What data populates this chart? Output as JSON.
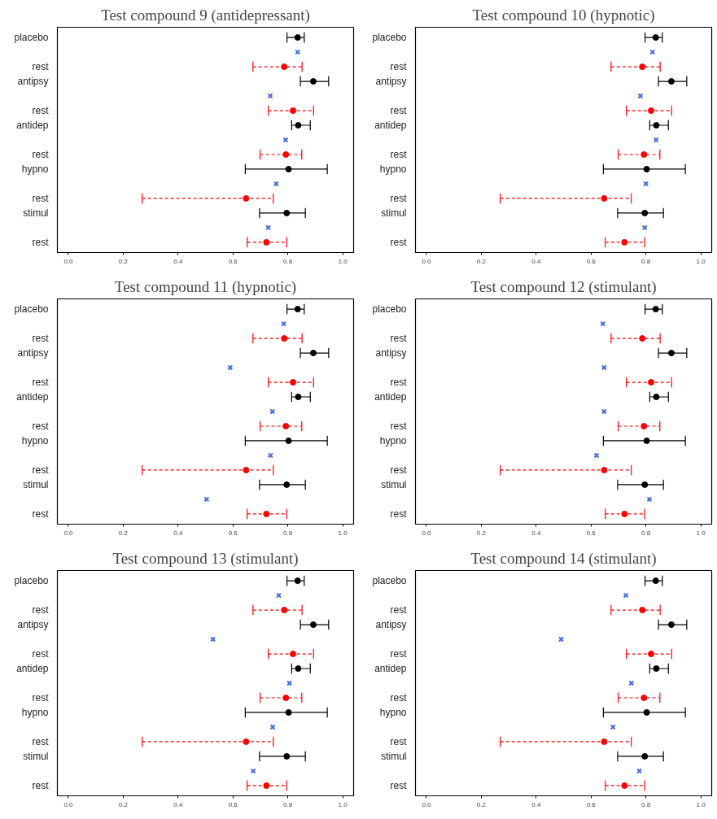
{
  "chart_data": [
    {
      "type": "scatter",
      "orientation": "horizontal",
      "title": "Test compound 9 (antidepressant)",
      "categories": [
        "placebo",
        null,
        "rest",
        "antipsy",
        null,
        "rest",
        "antidep",
        null,
        "rest",
        "hypno",
        null,
        "rest",
        "stimul",
        null,
        "rest"
      ],
      "xlim": [
        -0.04,
        1.04
      ],
      "xticks": [
        {
          "value": 0,
          "label": "0.0"
        },
        {
          "value": 0.2,
          "label": "0.2"
        },
        {
          "value": 0.4,
          "label": "0.4"
        },
        {
          "value": 0.6,
          "label": "0.6"
        },
        {
          "value": 0.8,
          "label": "0.8"
        },
        {
          "value": 1,
          "label": "1.0"
        }
      ],
      "series": [
        {
          "color": "#000000",
          "marker": "circle",
          "line_style": "solid",
          "values": [
            0.836,
            null,
            null,
            0.893,
            null,
            null,
            0.838,
            null,
            null,
            0.803,
            null,
            null,
            0.796,
            null,
            null
          ],
          "errors": [
            [
              0.797,
              0.86
            ],
            null,
            null,
            [
              0.846,
              0.949
            ],
            null,
            null,
            [
              0.814,
              0.882
            ],
            null,
            null,
            [
              0.645,
              0.944
            ],
            null,
            null,
            [
              0.697,
              0.864
            ],
            null,
            null
          ]
        },
        {
          "color": "#ff0000",
          "marker": "circle",
          "line_style": "dashed",
          "values": [
            null,
            null,
            0.787,
            null,
            null,
            0.819,
            null,
            null,
            0.793,
            null,
            null,
            0.648,
            null,
            null,
            0.722
          ],
          "errors": [
            null,
            null,
            [
              0.673,
              0.852
            ],
            null,
            null,
            [
              0.729,
              0.894
            ],
            null,
            null,
            [
              0.699,
              0.851
            ],
            null,
            null,
            [
              0.269,
              0.747
            ],
            null,
            null,
            [
              0.652,
              0.796
            ]
          ]
        },
        {
          "color": "#4169e1",
          "marker": "cross",
          "values": [
            null,
            0.836,
            null,
            null,
            0.736,
            null,
            null,
            0.792,
            null,
            null,
            0.758,
            null,
            null,
            0.729,
            null
          ]
        }
      ]
    },
    {
      "type": "scatter",
      "orientation": "horizontal",
      "title": "Test compound 10 (hypnotic)",
      "categories": [
        "placebo",
        null,
        "rest",
        "antipsy",
        null,
        "rest",
        "antidep",
        null,
        "rest",
        "hypno",
        null,
        "rest",
        "stimul",
        null,
        "rest"
      ],
      "xlim": [
        -0.04,
        1.04
      ],
      "xticks": [
        {
          "value": 0,
          "label": "0.0"
        },
        {
          "value": 0.2,
          "label": "0.2"
        },
        {
          "value": 0.4,
          "label": "0.4"
        },
        {
          "value": 0.6,
          "label": "0.6"
        },
        {
          "value": 0.8,
          "label": "0.8"
        },
        {
          "value": 1,
          "label": "1.0"
        }
      ],
      "series": [
        {
          "color": "#000000",
          "marker": "circle",
          "line_style": "solid",
          "values": [
            0.836,
            null,
            null,
            0.893,
            null,
            null,
            0.838,
            null,
            null,
            0.803,
            null,
            null,
            0.796,
            null,
            null
          ],
          "errors": [
            [
              0.797,
              0.86
            ],
            null,
            null,
            [
              0.846,
              0.949
            ],
            null,
            null,
            [
              0.814,
              0.882
            ],
            null,
            null,
            [
              0.645,
              0.944
            ],
            null,
            null,
            [
              0.697,
              0.864
            ],
            null,
            null
          ]
        },
        {
          "color": "#ff0000",
          "marker": "circle",
          "line_style": "dashed",
          "values": [
            null,
            null,
            0.787,
            null,
            null,
            0.819,
            null,
            null,
            0.793,
            null,
            null,
            0.648,
            null,
            null,
            0.722
          ],
          "errors": [
            null,
            null,
            [
              0.673,
              0.852
            ],
            null,
            null,
            [
              0.729,
              0.894
            ],
            null,
            null,
            [
              0.699,
              0.851
            ],
            null,
            null,
            [
              0.269,
              0.747
            ],
            null,
            null,
            [
              0.652,
              0.796
            ]
          ]
        },
        {
          "color": "#4169e1",
          "marker": "cross",
          "values": [
            null,
            0.824,
            null,
            null,
            0.78,
            null,
            null,
            0.837,
            null,
            null,
            0.8,
            null,
            null,
            0.796,
            null
          ]
        }
      ]
    },
    {
      "type": "scatter",
      "orientation": "horizontal",
      "title": "Test compound 11 (hypnotic)",
      "categories": [
        "placebo",
        null,
        "rest",
        "antipsy",
        null,
        "rest",
        "antidep",
        null,
        "rest",
        "hypno",
        null,
        "rest",
        "stimul",
        null,
        "rest"
      ],
      "xlim": [
        -0.04,
        1.04
      ],
      "xticks": [
        {
          "value": 0,
          "label": "0.0"
        },
        {
          "value": 0.2,
          "label": "0.2"
        },
        {
          "value": 0.4,
          "label": "0.4"
        },
        {
          "value": 0.6,
          "label": "0.6"
        },
        {
          "value": 0.8,
          "label": "0.8"
        },
        {
          "value": 1,
          "label": "1.0"
        }
      ],
      "series": [
        {
          "color": "#000000",
          "marker": "circle",
          "line_style": "solid",
          "values": [
            0.836,
            null,
            null,
            0.893,
            null,
            null,
            0.838,
            null,
            null,
            0.803,
            null,
            null,
            0.796,
            null,
            null
          ],
          "errors": [
            [
              0.797,
              0.86
            ],
            null,
            null,
            [
              0.846,
              0.949
            ],
            null,
            null,
            [
              0.814,
              0.882
            ],
            null,
            null,
            [
              0.645,
              0.944
            ],
            null,
            null,
            [
              0.697,
              0.864
            ],
            null,
            null
          ]
        },
        {
          "color": "#ff0000",
          "marker": "circle",
          "line_style": "dashed",
          "values": [
            null,
            null,
            0.787,
            null,
            null,
            0.819,
            null,
            null,
            0.793,
            null,
            null,
            0.648,
            null,
            null,
            0.722
          ],
          "errors": [
            null,
            null,
            [
              0.673,
              0.852
            ],
            null,
            null,
            [
              0.729,
              0.894
            ],
            null,
            null,
            [
              0.699,
              0.851
            ],
            null,
            null,
            [
              0.269,
              0.747
            ],
            null,
            null,
            [
              0.652,
              0.796
            ]
          ]
        },
        {
          "color": "#4169e1",
          "marker": "cross",
          "values": [
            null,
            0.785,
            null,
            null,
            0.59,
            null,
            null,
            0.744,
            null,
            null,
            0.737,
            null,
            null,
            0.504,
            null
          ]
        }
      ]
    },
    {
      "type": "scatter",
      "orientation": "horizontal",
      "title": "Test compound 12 (stimulant)",
      "categories": [
        "placebo",
        null,
        "rest",
        "antipsy",
        null,
        "rest",
        "antidep",
        null,
        "rest",
        "hypno",
        null,
        "rest",
        "stimul",
        null,
        "rest"
      ],
      "xlim": [
        -0.04,
        1.04
      ],
      "xticks": [
        {
          "value": 0,
          "label": "0.0"
        },
        {
          "value": 0.2,
          "label": "0.2"
        },
        {
          "value": 0.4,
          "label": "0.4"
        },
        {
          "value": 0.6,
          "label": "0.6"
        },
        {
          "value": 0.8,
          "label": "0.8"
        },
        {
          "value": 1,
          "label": "1.0"
        }
      ],
      "series": [
        {
          "color": "#000000",
          "marker": "circle",
          "line_style": "solid",
          "values": [
            0.836,
            null,
            null,
            0.893,
            null,
            null,
            0.838,
            null,
            null,
            0.803,
            null,
            null,
            0.796,
            null,
            null
          ],
          "errors": [
            [
              0.797,
              0.86
            ],
            null,
            null,
            [
              0.846,
              0.949
            ],
            null,
            null,
            [
              0.814,
              0.882
            ],
            null,
            null,
            [
              0.645,
              0.944
            ],
            null,
            null,
            [
              0.697,
              0.864
            ],
            null,
            null
          ]
        },
        {
          "color": "#ff0000",
          "marker": "circle",
          "line_style": "dashed",
          "values": [
            null,
            null,
            0.787,
            null,
            null,
            0.819,
            null,
            null,
            0.793,
            null,
            null,
            0.648,
            null,
            null,
            0.722
          ],
          "errors": [
            null,
            null,
            [
              0.673,
              0.852
            ],
            null,
            null,
            [
              0.729,
              0.894
            ],
            null,
            null,
            [
              0.699,
              0.851
            ],
            null,
            null,
            [
              0.269,
              0.747
            ],
            null,
            null,
            [
              0.652,
              0.796
            ]
          ]
        },
        {
          "color": "#4169e1",
          "marker": "cross",
          "values": [
            null,
            0.643,
            null,
            null,
            0.648,
            null,
            null,
            0.648,
            null,
            null,
            0.62,
            null,
            null,
            0.813,
            null
          ]
        }
      ]
    },
    {
      "type": "scatter",
      "orientation": "horizontal",
      "title": "Test compound 13 (stimulant)",
      "categories": [
        "placebo",
        null,
        "rest",
        "antipsy",
        null,
        "rest",
        "antidep",
        null,
        "rest",
        "hypno",
        null,
        "rest",
        "stimul",
        null,
        "rest"
      ],
      "xlim": [
        -0.04,
        1.04
      ],
      "xticks": [
        {
          "value": 0,
          "label": "0.0"
        },
        {
          "value": 0.2,
          "label": "0.2"
        },
        {
          "value": 0.4,
          "label": "0.4"
        },
        {
          "value": 0.6,
          "label": "0.6"
        },
        {
          "value": 0.8,
          "label": "0.8"
        },
        {
          "value": 1,
          "label": "1.0"
        }
      ],
      "series": [
        {
          "color": "#000000",
          "marker": "circle",
          "line_style": "solid",
          "values": [
            0.836,
            null,
            null,
            0.893,
            null,
            null,
            0.838,
            null,
            null,
            0.803,
            null,
            null,
            0.796,
            null,
            null
          ],
          "errors": [
            [
              0.797,
              0.86
            ],
            null,
            null,
            [
              0.846,
              0.949
            ],
            null,
            null,
            [
              0.814,
              0.882
            ],
            null,
            null,
            [
              0.645,
              0.944
            ],
            null,
            null,
            [
              0.697,
              0.864
            ],
            null,
            null
          ]
        },
        {
          "color": "#ff0000",
          "marker": "circle",
          "line_style": "dashed",
          "values": [
            null,
            null,
            0.787,
            null,
            null,
            0.819,
            null,
            null,
            0.793,
            null,
            null,
            0.648,
            null,
            null,
            0.722
          ],
          "errors": [
            null,
            null,
            [
              0.673,
              0.852
            ],
            null,
            null,
            [
              0.729,
              0.894
            ],
            null,
            null,
            [
              0.699,
              0.851
            ],
            null,
            null,
            [
              0.269,
              0.747
            ],
            null,
            null,
            [
              0.652,
              0.796
            ]
          ]
        },
        {
          "color": "#4169e1",
          "marker": "cross",
          "values": [
            null,
            0.767,
            null,
            null,
            0.527,
            null,
            null,
            0.806,
            null,
            null,
            0.745,
            null,
            null,
            0.674,
            null
          ]
        }
      ]
    },
    {
      "type": "scatter",
      "orientation": "horizontal",
      "title": "Test compound 14 (stimulant)",
      "categories": [
        "placebo",
        null,
        "rest",
        "antipsy",
        null,
        "rest",
        "antidep",
        null,
        "rest",
        "hypno",
        null,
        "rest",
        "stimul",
        null,
        "rest"
      ],
      "xlim": [
        -0.04,
        1.04
      ],
      "xticks": [
        {
          "value": 0,
          "label": "0.0"
        },
        {
          "value": 0.2,
          "label": "0.2"
        },
        {
          "value": 0.4,
          "label": "0.4"
        },
        {
          "value": 0.6,
          "label": "0.6"
        },
        {
          "value": 0.8,
          "label": "0.8"
        },
        {
          "value": 1,
          "label": "1.0"
        }
      ],
      "series": [
        {
          "color": "#000000",
          "marker": "circle",
          "line_style": "solid",
          "values": [
            0.836,
            null,
            null,
            0.893,
            null,
            null,
            0.838,
            null,
            null,
            0.803,
            null,
            null,
            0.796,
            null,
            null
          ],
          "errors": [
            [
              0.797,
              0.86
            ],
            null,
            null,
            [
              0.846,
              0.949
            ],
            null,
            null,
            [
              0.814,
              0.882
            ],
            null,
            null,
            [
              0.645,
              0.944
            ],
            null,
            null,
            [
              0.697,
              0.864
            ],
            null,
            null
          ]
        },
        {
          "color": "#ff0000",
          "marker": "circle",
          "line_style": "dashed",
          "values": [
            null,
            null,
            0.787,
            null,
            null,
            0.819,
            null,
            null,
            0.793,
            null,
            null,
            0.648,
            null,
            null,
            0.722
          ],
          "errors": [
            null,
            null,
            [
              0.673,
              0.852
            ],
            null,
            null,
            [
              0.729,
              0.894
            ],
            null,
            null,
            [
              0.699,
              0.851
            ],
            null,
            null,
            [
              0.269,
              0.747
            ],
            null,
            null,
            [
              0.652,
              0.796
            ]
          ]
        },
        {
          "color": "#4169e1",
          "marker": "cross",
          "values": [
            null,
            0.727,
            null,
            null,
            0.491,
            null,
            null,
            0.747,
            null,
            null,
            0.68,
            null,
            null,
            0.776,
            null
          ]
        }
      ]
    }
  ]
}
